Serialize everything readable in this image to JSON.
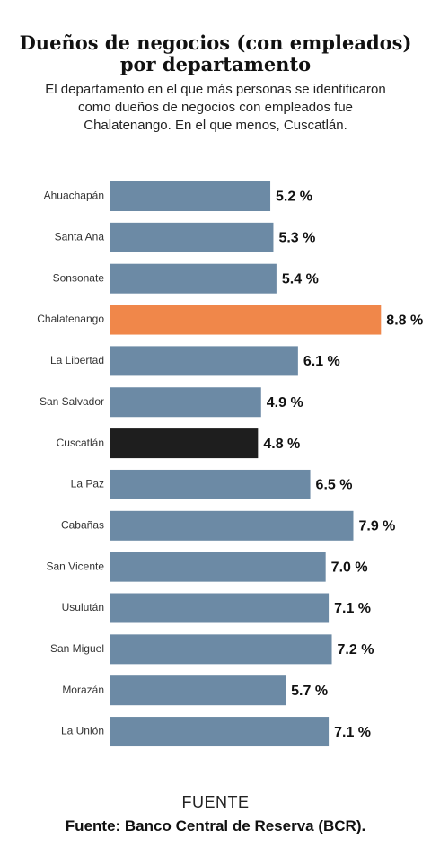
{
  "header": {
    "title_line1": "Dueños de negocios (con empleados)",
    "title_line2": "por departamento",
    "subtitle_line1": "El departamento en el que más personas se identificaron",
    "subtitle_line2": "como dueños de negocios con empleados fue",
    "subtitle_line3": "Chalatenango. En el que menos, Cuscatlán."
  },
  "source": {
    "heading": "FUENTE",
    "text": "Fuente: Banco Central de Reserva (BCR)."
  },
  "colors": {
    "default_bar": "#6c8aa5",
    "highlight_max": "#f0874a",
    "highlight_min": "#1e1e1e"
  },
  "chart_data": {
    "type": "bar",
    "orientation": "horizontal",
    "unit": "%",
    "xlim": [
      0,
      9.2
    ],
    "grid": false,
    "categories": [
      "Ahuachapán",
      "Santa Ana",
      "Sonsonate",
      "Chalatenango",
      "La Libertad",
      "San Salvador",
      "Cuscatlán",
      "La Paz",
      "Cabañas",
      "San Vicente",
      "Usulután",
      "San Miguel",
      "Morazán",
      "La Unión"
    ],
    "values": [
      5.2,
      5.3,
      5.4,
      8.8,
      6.1,
      4.9,
      4.8,
      6.5,
      7.9,
      7.0,
      7.1,
      7.2,
      5.7,
      7.1
    ],
    "value_labels": [
      "5.2 %",
      "5.3 %",
      "5.4 %",
      "8.8 %",
      "6.1 %",
      "4.9 %",
      "4.8 %",
      "6.5 %",
      "7.9 %",
      "7.0 %",
      "7.1 %",
      "7.2 %",
      "5.7 %",
      "7.1 %"
    ],
    "highlight_max_category": "Chalatenango",
    "highlight_min_category": "Cuscatlán"
  }
}
